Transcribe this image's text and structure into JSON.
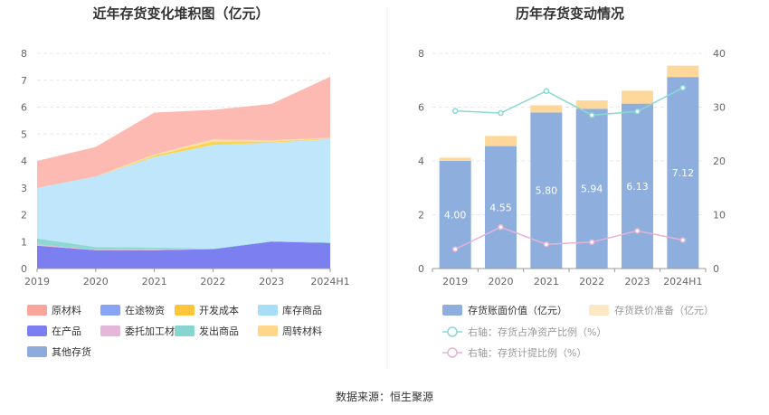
{
  "source_label": "数据来源：恒生聚源",
  "chart_data": [
    {
      "type": "area",
      "title": "近年存货变化堆积图（亿元）",
      "categories": [
        "2019",
        "2020",
        "2021",
        "2022",
        "2023",
        "2024H1"
      ],
      "ylim": [
        0,
        8
      ],
      "yticks": [
        "0",
        "1",
        "2",
        "3",
        "4",
        "5",
        "6",
        "7",
        "8"
      ],
      "series": [
        {
          "name": "在产品",
          "color": "#7b7ff0",
          "values": [
            0.85,
            0.68,
            0.68,
            0.72,
            1.0,
            0.95
          ]
        },
        {
          "name": "委托加工材料",
          "color": "#e4b6d8",
          "values": [
            0.05,
            0.02,
            0.05,
            0.0,
            0.0,
            0.0
          ]
        },
        {
          "name": "发出商品",
          "color": "#8dd9d2",
          "values": [
            0.22,
            0.1,
            0.05,
            0.02,
            0.02,
            0.02
          ]
        },
        {
          "name": "库存商品",
          "color": "#bfe6fb",
          "values": [
            1.88,
            2.62,
            3.37,
            3.86,
            3.66,
            3.85
          ]
        },
        {
          "name": "开发成本",
          "color": "#fcd34d",
          "values": [
            0.0,
            0.0,
            0.05,
            0.12,
            0.04,
            0.02
          ]
        },
        {
          "name": "周转材料",
          "color": "#ffe0a0",
          "values": [
            0.0,
            0.0,
            0.05,
            0.08,
            0.05,
            0.02
          ]
        },
        {
          "name": "原材料",
          "color": "#fdbab3",
          "values": [
            1.0,
            1.1,
            1.55,
            1.1,
            1.35,
            2.27
          ]
        }
      ],
      "legend": [
        {
          "name": "原材料",
          "color": "#f9a59c"
        },
        {
          "name": "在途物资",
          "color": "#89a4f5"
        },
        {
          "name": "开发成本",
          "color": "#fcc53a"
        },
        {
          "name": "库存商品",
          "color": "#a8ddf7"
        },
        {
          "name": "在产品",
          "color": "#7b7ff0"
        },
        {
          "name": "委托加工材料",
          "color": "#e4b6d8"
        },
        {
          "name": "发出商品",
          "color": "#84d6cf"
        },
        {
          "name": "周转材料",
          "color": "#ffd68a"
        },
        {
          "name": "其他存货",
          "color": "#8fabdb"
        }
      ]
    },
    {
      "type": "bar",
      "title": "历年存货变动情况",
      "categories": [
        "2019",
        "2020",
        "2021",
        "2022",
        "2023",
        "2024H1"
      ],
      "ylim": [
        0,
        8
      ],
      "yticks": [
        "0",
        "2",
        "4",
        "6",
        "8"
      ],
      "y2lim": [
        0,
        40
      ],
      "y2ticks": [
        "0",
        "10",
        "20",
        "30",
        "40"
      ],
      "series": [
        {
          "name": "存货账面价值（亿元）",
          "color": "#8eaedd",
          "values": [
            4.0,
            4.55,
            5.8,
            5.94,
            6.13,
            7.12
          ],
          "labels": [
            "4.00",
            "4.55",
            "5.80",
            "5.94",
            "6.13",
            "7.12"
          ]
        },
        {
          "name": "存货跌价准备（亿元）",
          "color": "#fdd89a",
          "values": [
            0.12,
            0.38,
            0.27,
            0.31,
            0.48,
            0.42
          ]
        }
      ],
      "lines": [
        {
          "name": "右轴：存货占净资产比例（%）",
          "color": "#8ad8d4",
          "values": [
            29.3,
            28.9,
            33.0,
            28.5,
            29.2,
            33.6
          ]
        },
        {
          "name": "右轴：存货计提比例（%）",
          "color": "#e5b3d6",
          "values": [
            3.6,
            7.7,
            4.5,
            4.9,
            7.0,
            5.3
          ]
        }
      ]
    }
  ]
}
